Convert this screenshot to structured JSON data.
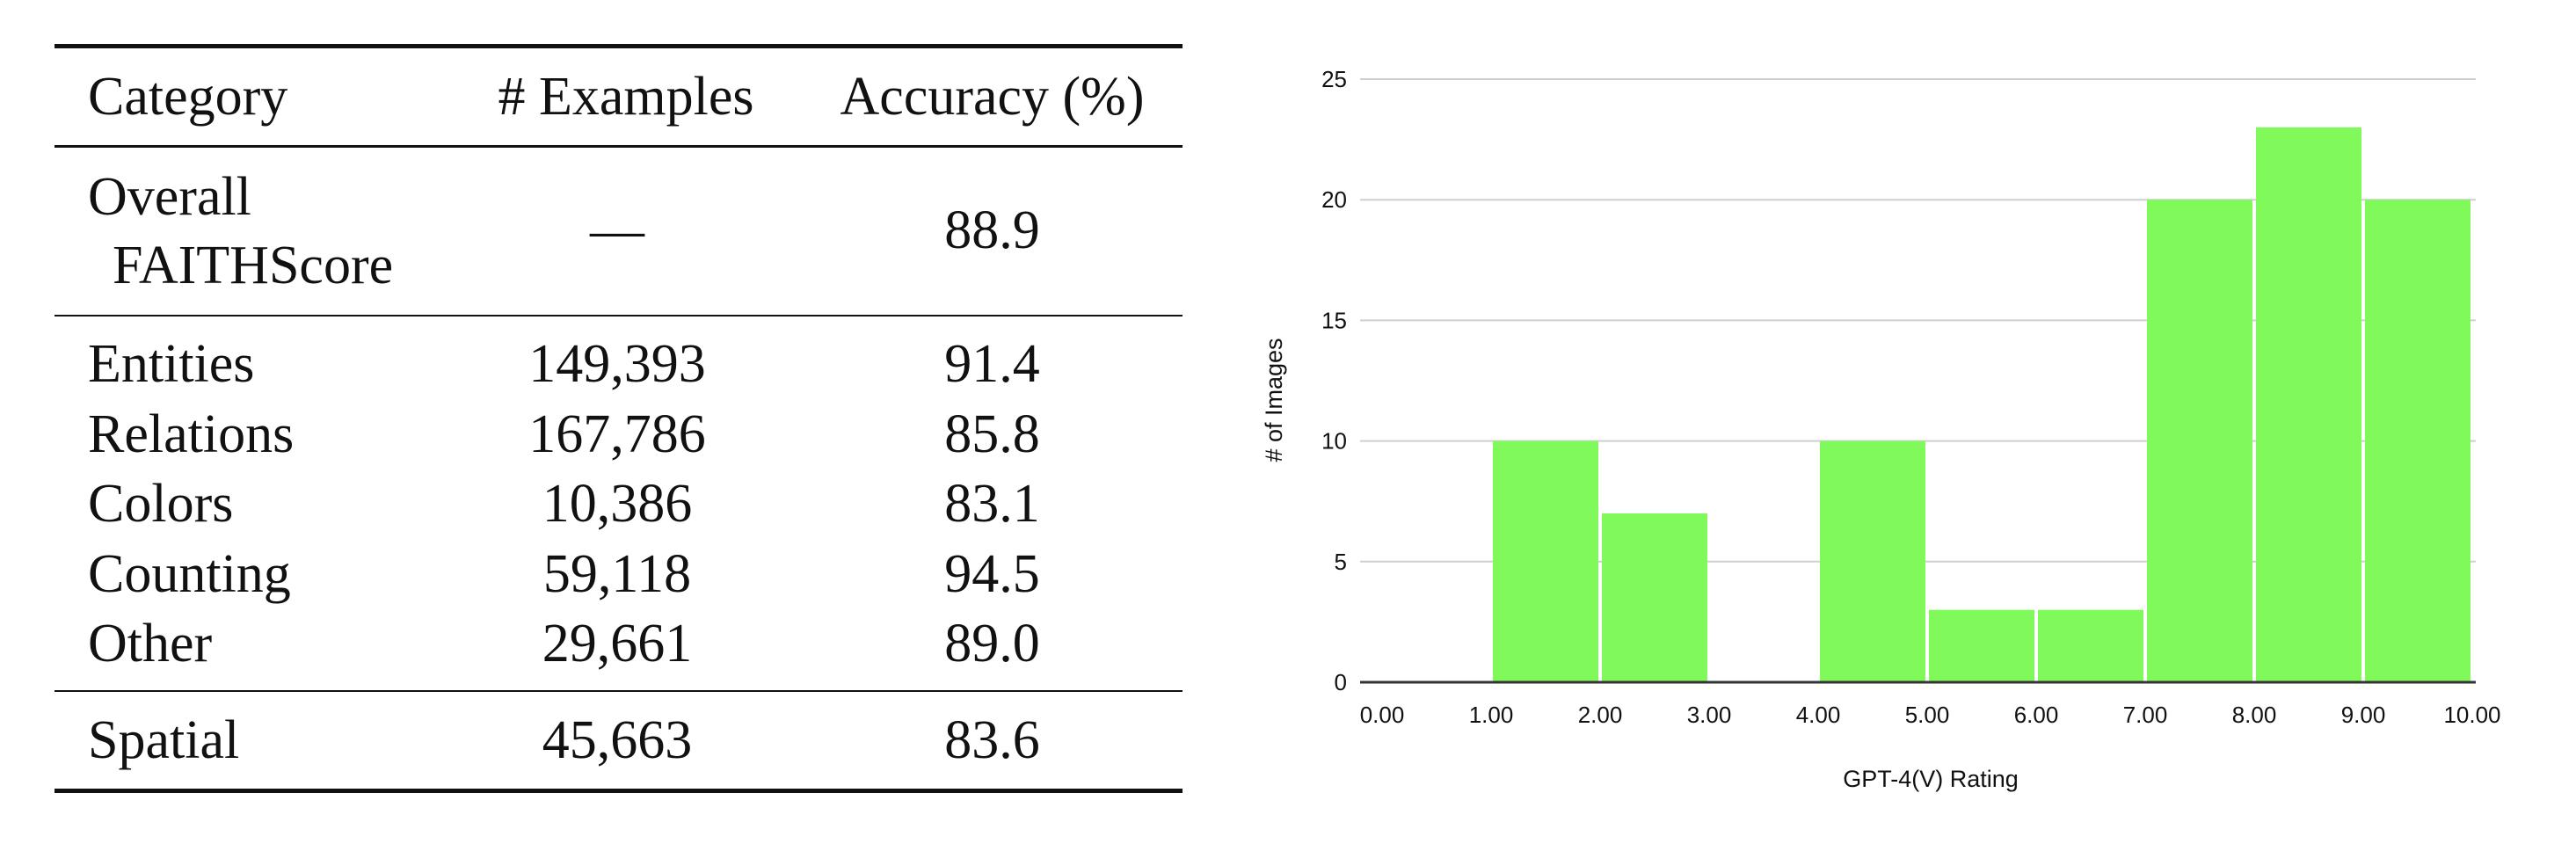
{
  "table": {
    "headers": [
      "Category",
      "# Examples",
      "Accuracy (%)"
    ],
    "overall": {
      "label_line1": "Overall",
      "label_line2": "FAITHScore",
      "examples": "—",
      "accuracy": "88.9"
    },
    "rows": [
      {
        "category": "Entities",
        "examples": "149,393",
        "accuracy": "91.4"
      },
      {
        "category": "Relations",
        "examples": "167,786",
        "accuracy": "85.8"
      },
      {
        "category": "Colors",
        "examples": "10,386",
        "accuracy": "83.1"
      },
      {
        "category": "Counting",
        "examples": "59,118",
        "accuracy": "94.5"
      },
      {
        "category": "Other",
        "examples": "29,661",
        "accuracy": "89.0"
      }
    ],
    "spatial": {
      "category": "Spatial",
      "examples": "45,663",
      "accuracy": "83.6"
    }
  },
  "chart_data": {
    "type": "bar",
    "xlabel": "GPT-4(V) Rating",
    "ylabel": "# of Images",
    "xlim": [
      0,
      10
    ],
    "ylim": [
      0,
      25
    ],
    "x_ticks": [
      "0.00",
      "1.00",
      "2.00",
      "3.00",
      "4.00",
      "5.00",
      "6.00",
      "7.00",
      "8.00",
      "9.00",
      "10.00"
    ],
    "y_ticks": [
      0,
      5,
      10,
      15,
      20,
      25
    ],
    "grid": true,
    "bar_color": "#80f95b",
    "bins": [
      {
        "start": 1,
        "end": 2,
        "value": 10
      },
      {
        "start": 2,
        "end": 3,
        "value": 7
      },
      {
        "start": 4,
        "end": 5,
        "value": 10
      },
      {
        "start": 5,
        "end": 6,
        "value": 3
      },
      {
        "start": 6,
        "end": 7,
        "value": 3
      },
      {
        "start": 7,
        "end": 8,
        "value": 20
      },
      {
        "start": 8,
        "end": 9,
        "value": 23
      },
      {
        "start": 9,
        "end": 10,
        "value": 20
      }
    ]
  }
}
